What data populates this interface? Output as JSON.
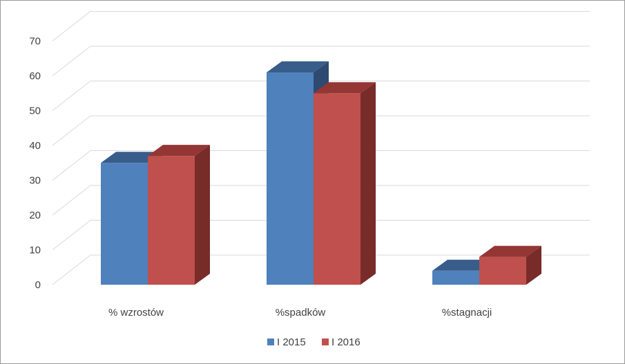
{
  "chart_data": {
    "type": "bar",
    "style": "3d-clustered-column",
    "categories": [
      "% wzrostów",
      "%spadków",
      "%stagnacji"
    ],
    "series": [
      {
        "name": "I 2015",
        "values": [
          35,
          61,
          4
        ],
        "color": "#4F81BD",
        "top_color": "#385D8A",
        "side_color": "#2E4A70"
      },
      {
        "name": "I 2016",
        "values": [
          37,
          55,
          8
        ],
        "color": "#C0504D",
        "top_color": "#943634",
        "side_color": "#772C2A"
      }
    ],
    "ylim": [
      0,
      70
    ],
    "yticks": [
      0,
      10,
      20,
      30,
      40,
      50,
      60,
      70
    ],
    "grid": true,
    "legend": "bottom",
    "title": "",
    "xlabel": "",
    "ylabel": ""
  }
}
